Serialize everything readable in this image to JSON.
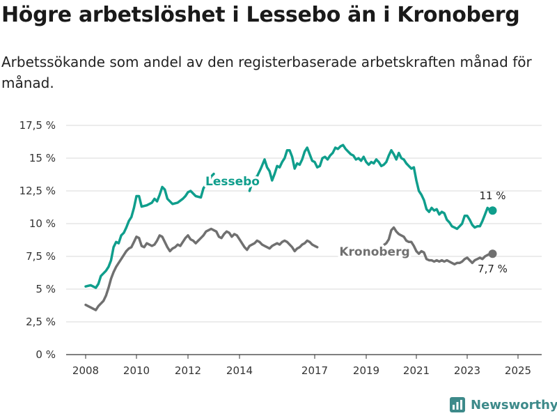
{
  "title": "Högre arbetslöshet i Lessebo än i Kronoberg",
  "subtitle": "Arbetssökande som andel av den registerbaserade arbetskraften månad för månad.",
  "brand": {
    "name": "Newsworthy",
    "icon": "bar-chart-logo-icon"
  },
  "colors": {
    "lessebo": "#0f9e8c",
    "kronoberg": "#707070",
    "grid": "#d9d9d9",
    "axis": "#333333",
    "brand": "#3d8a8a"
  },
  "chart_data": {
    "type": "line",
    "xlim": [
      2007.6,
      2026.0
    ],
    "ylim": [
      0,
      17.5
    ],
    "x_ticks": [
      2008,
      2010,
      2012,
      2014,
      2017,
      2019,
      2021,
      2023,
      2025
    ],
    "x_tick_labels": [
      "2008",
      "2010",
      "2012",
      "2014",
      "2017",
      "2019",
      "2021",
      "2023",
      "2025"
    ],
    "y_ticks": [
      0,
      2.5,
      5,
      7.5,
      10,
      12.5,
      15,
      17.5
    ],
    "y_tick_labels": [
      "0 %",
      "2,5 %",
      "5 %",
      "7,5 %",
      "10 %",
      "12,5 %",
      "15 %",
      "17,5 %"
    ],
    "grid": "horizontal",
    "series": [
      {
        "name": "Lessebo",
        "color": "#0f9e8c",
        "end_label": "11 %",
        "points": [
          [
            2008.0,
            5.2
          ],
          [
            2008.2,
            5.3
          ],
          [
            2008.4,
            5.1
          ],
          [
            2008.5,
            5.4
          ],
          [
            2008.6,
            6.0
          ],
          [
            2008.8,
            6.4
          ],
          [
            2008.9,
            6.7
          ],
          [
            2009.0,
            7.2
          ],
          [
            2009.1,
            8.2
          ],
          [
            2009.2,
            8.6
          ],
          [
            2009.3,
            8.5
          ],
          [
            2009.4,
            9.1
          ],
          [
            2009.5,
            9.3
          ],
          [
            2009.6,
            9.7
          ],
          [
            2009.7,
            10.2
          ],
          [
            2009.8,
            10.5
          ],
          [
            2009.9,
            11.2
          ],
          [
            2010.0,
            12.1
          ],
          [
            2010.1,
            12.1
          ],
          [
            2010.2,
            11.3
          ],
          [
            2010.4,
            11.4
          ],
          [
            2010.6,
            11.6
          ],
          [
            2010.7,
            11.9
          ],
          [
            2010.8,
            11.7
          ],
          [
            2010.9,
            12.2
          ],
          [
            2011.0,
            12.8
          ],
          [
            2011.1,
            12.6
          ],
          [
            2011.2,
            11.9
          ],
          [
            2011.4,
            11.5
          ],
          [
            2011.6,
            11.6
          ],
          [
            2011.8,
            11.9
          ],
          [
            2011.9,
            12.1
          ],
          [
            2012.0,
            12.4
          ],
          [
            2012.1,
            12.5
          ],
          [
            2012.3,
            12.1
          ],
          [
            2012.5,
            12.0
          ],
          [
            2012.6,
            12.7
          ],
          [
            2012.8,
            13.2
          ],
          [
            2012.9,
            13.6
          ],
          [
            2013.0,
            13.8
          ]
        ],
        "points_b": [
          [
            2014.4,
            12.5
          ],
          [
            2014.5,
            13.1
          ],
          [
            2014.6,
            13.5
          ],
          [
            2014.7,
            13.6
          ],
          [
            2014.85,
            14.2
          ],
          [
            2015.0,
            14.9
          ],
          [
            2015.1,
            14.3
          ],
          [
            2015.2,
            14.0
          ],
          [
            2015.3,
            13.3
          ],
          [
            2015.4,
            13.8
          ],
          [
            2015.5,
            14.4
          ],
          [
            2015.6,
            14.3
          ],
          [
            2015.7,
            14.7
          ],
          [
            2015.8,
            15.0
          ],
          [
            2015.9,
            15.6
          ],
          [
            2016.0,
            15.6
          ],
          [
            2016.1,
            15.1
          ],
          [
            2016.2,
            14.2
          ],
          [
            2016.3,
            14.6
          ],
          [
            2016.4,
            14.5
          ],
          [
            2016.5,
            14.9
          ],
          [
            2016.6,
            15.5
          ],
          [
            2016.7,
            15.8
          ],
          [
            2016.8,
            15.3
          ],
          [
            2016.9,
            14.8
          ],
          [
            2017.0,
            14.7
          ],
          [
            2017.1,
            14.3
          ],
          [
            2017.2,
            14.4
          ],
          [
            2017.3,
            15.0
          ],
          [
            2017.4,
            15.1
          ],
          [
            2017.5,
            14.9
          ],
          [
            2017.6,
            15.2
          ],
          [
            2017.7,
            15.4
          ],
          [
            2017.8,
            15.8
          ],
          [
            2017.9,
            15.7
          ],
          [
            2018.0,
            15.9
          ],
          [
            2018.1,
            16.0
          ],
          [
            2018.2,
            15.7
          ],
          [
            2018.3,
            15.5
          ],
          [
            2018.4,
            15.3
          ],
          [
            2018.5,
            15.2
          ],
          [
            2018.6,
            14.9
          ],
          [
            2018.7,
            15.0
          ],
          [
            2018.8,
            14.8
          ],
          [
            2018.9,
            15.1
          ],
          [
            2019.0,
            14.7
          ],
          [
            2019.1,
            14.5
          ],
          [
            2019.2,
            14.7
          ],
          [
            2019.3,
            14.6
          ],
          [
            2019.4,
            14.9
          ],
          [
            2019.5,
            14.7
          ],
          [
            2019.6,
            14.4
          ],
          [
            2019.7,
            14.5
          ],
          [
            2019.8,
            14.7
          ],
          [
            2019.9,
            15.2
          ],
          [
            2020.0,
            15.6
          ],
          [
            2020.1,
            15.3
          ],
          [
            2020.2,
            14.9
          ],
          [
            2020.3,
            15.4
          ],
          [
            2020.4,
            15.0
          ],
          [
            2020.5,
            14.9
          ],
          [
            2020.6,
            14.6
          ],
          [
            2020.7,
            14.4
          ],
          [
            2020.8,
            14.2
          ],
          [
            2020.9,
            14.3
          ],
          [
            2021.0,
            13.3
          ],
          [
            2021.1,
            12.5
          ],
          [
            2021.2,
            12.2
          ],
          [
            2021.3,
            11.8
          ],
          [
            2021.4,
            11.1
          ],
          [
            2021.5,
            10.9
          ],
          [
            2021.6,
            11.2
          ],
          [
            2021.7,
            11.0
          ],
          [
            2021.8,
            11.1
          ],
          [
            2021.9,
            10.7
          ],
          [
            2022.0,
            10.9
          ],
          [
            2022.1,
            10.8
          ],
          [
            2022.2,
            10.3
          ],
          [
            2022.3,
            10.1
          ],
          [
            2022.4,
            9.8
          ],
          [
            2022.5,
            9.7
          ],
          [
            2022.6,
            9.6
          ],
          [
            2022.7,
            9.8
          ],
          [
            2022.8,
            10.0
          ],
          [
            2022.9,
            10.6
          ],
          [
            2023.0,
            10.6
          ],
          [
            2023.1,
            10.3
          ],
          [
            2023.2,
            9.9
          ],
          [
            2023.3,
            9.7
          ],
          [
            2023.4,
            9.8
          ],
          [
            2023.5,
            9.8
          ],
          [
            2023.6,
            10.2
          ],
          [
            2023.7,
            10.7
          ],
          [
            2023.8,
            11.2
          ],
          [
            2023.9,
            11.0
          ],
          [
            2024.0,
            11.0
          ]
        ]
      },
      {
        "name": "Kronoberg",
        "color": "#707070",
        "end_label": "7,7 %",
        "points": [
          [
            2008.0,
            3.8
          ],
          [
            2008.1,
            3.7
          ],
          [
            2008.2,
            3.6
          ],
          [
            2008.3,
            3.5
          ],
          [
            2008.4,
            3.4
          ],
          [
            2008.5,
            3.7
          ],
          [
            2008.6,
            3.9
          ],
          [
            2008.7,
            4.1
          ],
          [
            2008.8,
            4.5
          ],
          [
            2008.9,
            5.1
          ],
          [
            2009.0,
            5.8
          ],
          [
            2009.1,
            6.3
          ],
          [
            2009.2,
            6.7
          ],
          [
            2009.3,
            7.0
          ],
          [
            2009.4,
            7.3
          ],
          [
            2009.5,
            7.6
          ],
          [
            2009.6,
            7.9
          ],
          [
            2009.7,
            8.1
          ],
          [
            2009.8,
            8.2
          ],
          [
            2009.9,
            8.6
          ],
          [
            2010.0,
            9.0
          ],
          [
            2010.1,
            8.9
          ],
          [
            2010.2,
            8.3
          ],
          [
            2010.3,
            8.2
          ],
          [
            2010.4,
            8.5
          ],
          [
            2010.5,
            8.4
          ],
          [
            2010.6,
            8.3
          ],
          [
            2010.7,
            8.4
          ],
          [
            2010.8,
            8.7
          ],
          [
            2010.9,
            9.1
          ],
          [
            2011.0,
            9.0
          ],
          [
            2011.1,
            8.6
          ],
          [
            2011.2,
            8.2
          ],
          [
            2011.3,
            7.9
          ],
          [
            2011.4,
            8.1
          ],
          [
            2011.5,
            8.2
          ],
          [
            2011.6,
            8.4
          ],
          [
            2011.7,
            8.3
          ],
          [
            2011.8,
            8.6
          ],
          [
            2011.9,
            8.9
          ],
          [
            2012.0,
            9.1
          ],
          [
            2012.1,
            8.8
          ],
          [
            2012.2,
            8.7
          ],
          [
            2012.3,
            8.5
          ],
          [
            2012.4,
            8.7
          ],
          [
            2012.5,
            8.9
          ],
          [
            2012.6,
            9.1
          ],
          [
            2012.7,
            9.4
          ],
          [
            2012.8,
            9.5
          ],
          [
            2012.9,
            9.6
          ],
          [
            2013.0,
            9.5
          ],
          [
            2013.1,
            9.4
          ],
          [
            2013.2,
            9.0
          ],
          [
            2013.3,
            8.9
          ],
          [
            2013.4,
            9.2
          ],
          [
            2013.5,
            9.4
          ],
          [
            2013.6,
            9.3
          ],
          [
            2013.7,
            9.0
          ],
          [
            2013.8,
            9.2
          ],
          [
            2013.9,
            9.1
          ],
          [
            2014.0,
            8.8
          ],
          [
            2014.1,
            8.5
          ],
          [
            2014.2,
            8.2
          ],
          [
            2014.3,
            8.0
          ],
          [
            2014.4,
            8.3
          ],
          [
            2014.5,
            8.4
          ],
          [
            2014.6,
            8.5
          ],
          [
            2014.7,
            8.7
          ],
          [
            2014.8,
            8.6
          ],
          [
            2014.9,
            8.4
          ],
          [
            2015.0,
            8.3
          ],
          [
            2015.1,
            8.2
          ],
          [
            2015.2,
            8.1
          ],
          [
            2015.3,
            8.3
          ],
          [
            2015.4,
            8.4
          ],
          [
            2015.5,
            8.5
          ],
          [
            2015.6,
            8.4
          ],
          [
            2015.7,
            8.6
          ],
          [
            2015.8,
            8.7
          ],
          [
            2015.9,
            8.6
          ],
          [
            2016.0,
            8.4
          ],
          [
            2016.1,
            8.2
          ],
          [
            2016.2,
            7.9
          ],
          [
            2016.3,
            8.1
          ],
          [
            2016.4,
            8.2
          ],
          [
            2016.5,
            8.4
          ],
          [
            2016.6,
            8.5
          ],
          [
            2016.7,
            8.7
          ],
          [
            2016.8,
            8.6
          ],
          [
            2016.9,
            8.4
          ],
          [
            2017.0,
            8.3
          ],
          [
            2017.1,
            8.2
          ]
        ],
        "points_b": [
          [
            2019.65,
            8.3
          ],
          [
            2019.8,
            8.5
          ],
          [
            2019.9,
            8.8
          ],
          [
            2020.0,
            9.5
          ],
          [
            2020.1,
            9.7
          ],
          [
            2020.2,
            9.4
          ],
          [
            2020.3,
            9.2
          ],
          [
            2020.4,
            9.1
          ],
          [
            2020.5,
            9.0
          ],
          [
            2020.6,
            8.7
          ],
          [
            2020.7,
            8.6
          ],
          [
            2020.8,
            8.6
          ],
          [
            2020.9,
            8.3
          ],
          [
            2021.0,
            7.9
          ],
          [
            2021.1,
            7.7
          ],
          [
            2021.2,
            7.9
          ],
          [
            2021.3,
            7.8
          ],
          [
            2021.4,
            7.3
          ],
          [
            2021.5,
            7.2
          ],
          [
            2021.6,
            7.2
          ],
          [
            2021.7,
            7.1
          ],
          [
            2021.8,
            7.2
          ],
          [
            2021.9,
            7.1
          ],
          [
            2022.0,
            7.2
          ],
          [
            2022.1,
            7.1
          ],
          [
            2022.2,
            7.2
          ],
          [
            2022.3,
            7.1
          ],
          [
            2022.4,
            7.0
          ],
          [
            2022.5,
            6.9
          ],
          [
            2022.6,
            7.0
          ],
          [
            2022.7,
            7.0
          ],
          [
            2022.8,
            7.1
          ],
          [
            2022.9,
            7.3
          ],
          [
            2023.0,
            7.4
          ],
          [
            2023.1,
            7.2
          ],
          [
            2023.2,
            7.0
          ],
          [
            2023.3,
            7.2
          ],
          [
            2023.4,
            7.3
          ],
          [
            2023.5,
            7.4
          ],
          [
            2023.6,
            7.3
          ],
          [
            2023.7,
            7.5
          ],
          [
            2023.8,
            7.6
          ],
          [
            2023.9,
            7.7
          ],
          [
            2024.0,
            7.7
          ]
        ]
      }
    ],
    "series_labels": [
      {
        "text": "Lessebo",
        "series": "Lessebo"
      },
      {
        "text": "Kronoberg",
        "series": "Kronoberg"
      }
    ]
  }
}
